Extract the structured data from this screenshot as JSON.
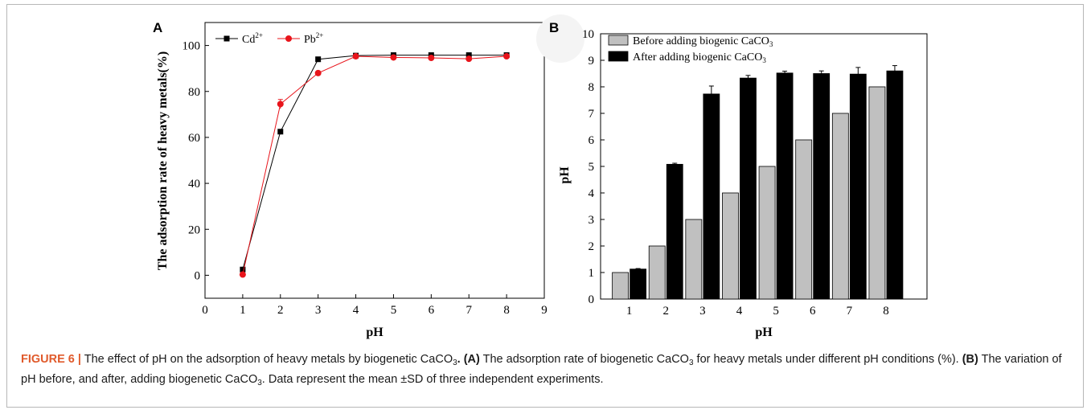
{
  "colors": {
    "cd": "#000000",
    "pb": "#e8141b",
    "before": "#c0c0c0",
    "after": "#000000",
    "caption_label": "#e05a2b"
  },
  "chart_data": [
    {
      "type": "line",
      "panel": "A",
      "xlabel": "pH",
      "ylabel": "The adsorption rate of heavy metals(%)",
      "xlim": [
        0,
        9
      ],
      "ylim": [
        -10,
        110
      ],
      "x_ticks": [
        "0",
        "1",
        "2",
        "3",
        "4",
        "5",
        "6",
        "7",
        "8",
        "9"
      ],
      "y_ticks": [
        "0",
        "20",
        "40",
        "60",
        "80",
        "100"
      ],
      "x": [
        1,
        2,
        3,
        4,
        5,
        6,
        7,
        8
      ],
      "legend_position": "top-left",
      "series": [
        {
          "name": "Cd",
          "superscript": "2+",
          "marker": "square",
          "values": [
            2.5,
            62.5,
            94,
            95.6,
            95.8,
            95.8,
            95.8,
            95.8
          ],
          "errors": [
            0,
            0,
            0,
            0,
            0,
            0,
            0,
            0
          ]
        },
        {
          "name": "Pb",
          "superscript": "2+",
          "marker": "circle",
          "values": [
            0.3,
            74.5,
            88,
            95.3,
            94.8,
            94.6,
            94.2,
            95.3
          ],
          "errors": [
            0,
            2,
            0,
            0,
            0,
            0,
            0,
            0
          ]
        }
      ]
    },
    {
      "type": "bar",
      "panel": "B",
      "xlabel": "pH",
      "ylabel": "pH",
      "ylim": [
        0,
        10
      ],
      "categories": [
        "1",
        "2",
        "3",
        "4",
        "5",
        "6",
        "7",
        "8"
      ],
      "y_ticks": [
        "0",
        "1",
        "2",
        "3",
        "4",
        "5",
        "6",
        "7",
        "8",
        "9",
        "10"
      ],
      "legend_position": "top-left",
      "series": [
        {
          "name": "Before adding biogenic CaCO",
          "subscript": "3",
          "values": [
            1,
            2,
            3,
            4,
            5,
            6,
            7,
            8
          ],
          "errors": [
            0,
            0,
            0,
            0,
            0,
            0,
            0,
            0
          ]
        },
        {
          "name": "After adding biogenic CaCO",
          "subscript": "3",
          "values": [
            1.13,
            5.08,
            7.73,
            8.33,
            8.52,
            8.5,
            8.48,
            8.6
          ],
          "errors": [
            0.02,
            0.04,
            0.3,
            0.1,
            0.07,
            0.1,
            0.25,
            0.2
          ]
        }
      ]
    }
  ],
  "caption": {
    "figure_label": "FIGURE 6 |",
    "t1": " The effect of pH on the adsorption of heavy metals by biogenetic CaCO",
    "t1_sub": "3",
    "t1_end": ". ",
    "a_label": "(A)",
    "t2": " The adsorption rate of biogenetic CaCO",
    "t2_sub": "3",
    "t3": " for heavy metals under different pH conditions (%). ",
    "b_label": "(B)",
    "t4": " The variation of pH before, and after, adding biogenetic CaCO",
    "t4_sub": "3",
    "t5": ". Data represent the mean ±SD of three independent experiments."
  }
}
